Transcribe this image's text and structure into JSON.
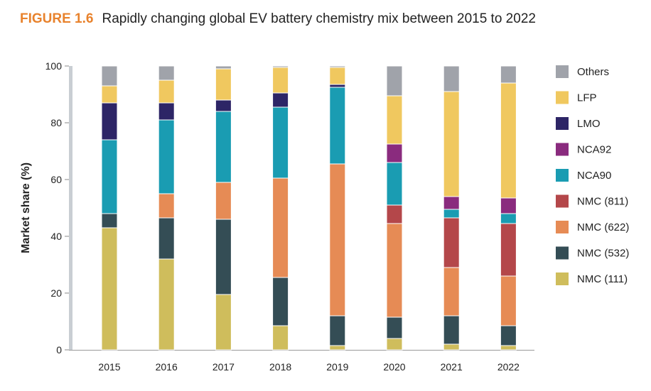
{
  "figure": {
    "label": "FIGURE 1.6",
    "caption": "Rapidly changing global EV battery chemistry mix between 2015 to 2022"
  },
  "chart_data": {
    "type": "bar",
    "stacked": true,
    "title": "Rapidly changing global EV battery chemistry mix between 2015 to 2022",
    "xlabel": "",
    "ylabel": "Market share (%)",
    "ylim": [
      0,
      100
    ],
    "yticks": [
      0,
      20,
      40,
      60,
      80,
      100
    ],
    "grid": false,
    "legend_position": "right",
    "categories": [
      "2015",
      "2016",
      "2017",
      "2018",
      "2019",
      "2020",
      "2021",
      "2022"
    ],
    "series": [
      {
        "name": "NMC (111)",
        "color": "#cfbd5c",
        "values": [
          43,
          32,
          19.5,
          8.5,
          1.5,
          4,
          2,
          1.5
        ]
      },
      {
        "name": "NMC (532)",
        "color": "#344d55",
        "values": [
          5,
          14.5,
          26.5,
          17,
          10.5,
          7.5,
          10,
          7
        ]
      },
      {
        "name": "NMC (622)",
        "color": "#e68b55",
        "values": [
          0,
          8.5,
          13,
          35,
          53.5,
          33,
          17,
          17.5
        ]
      },
      {
        "name": "NMC (811)",
        "color": "#b4474a",
        "values": [
          0,
          0,
          0,
          0,
          0,
          6.5,
          17.5,
          18.5
        ]
      },
      {
        "name": "NCA90",
        "color": "#1a9cb2",
        "values": [
          26,
          26,
          25,
          25,
          27,
          15,
          3,
          3.5
        ]
      },
      {
        "name": "NCA92",
        "color": "#8a2b7e",
        "values": [
          0,
          0,
          0,
          0,
          0,
          6.5,
          4.5,
          5.5
        ]
      },
      {
        "name": "LMO",
        "color": "#2d2566",
        "values": [
          13,
          6,
          4,
          5,
          1,
          0,
          0,
          0
        ]
      },
      {
        "name": "LFP",
        "color": "#f0c85f",
        "values": [
          6,
          8,
          11,
          9,
          6,
          17,
          37,
          40.5
        ]
      },
      {
        "name": "Others",
        "color": "#a0a3aa",
        "values": [
          7,
          5,
          1,
          0.5,
          0.5,
          10.5,
          9,
          6
        ]
      }
    ],
    "legend_order": [
      "Others",
      "LFP",
      "LMO",
      "NCA92",
      "NCA90",
      "NMC (811)",
      "NMC (622)",
      "NMC (532)",
      "NMC (111)"
    ]
  }
}
